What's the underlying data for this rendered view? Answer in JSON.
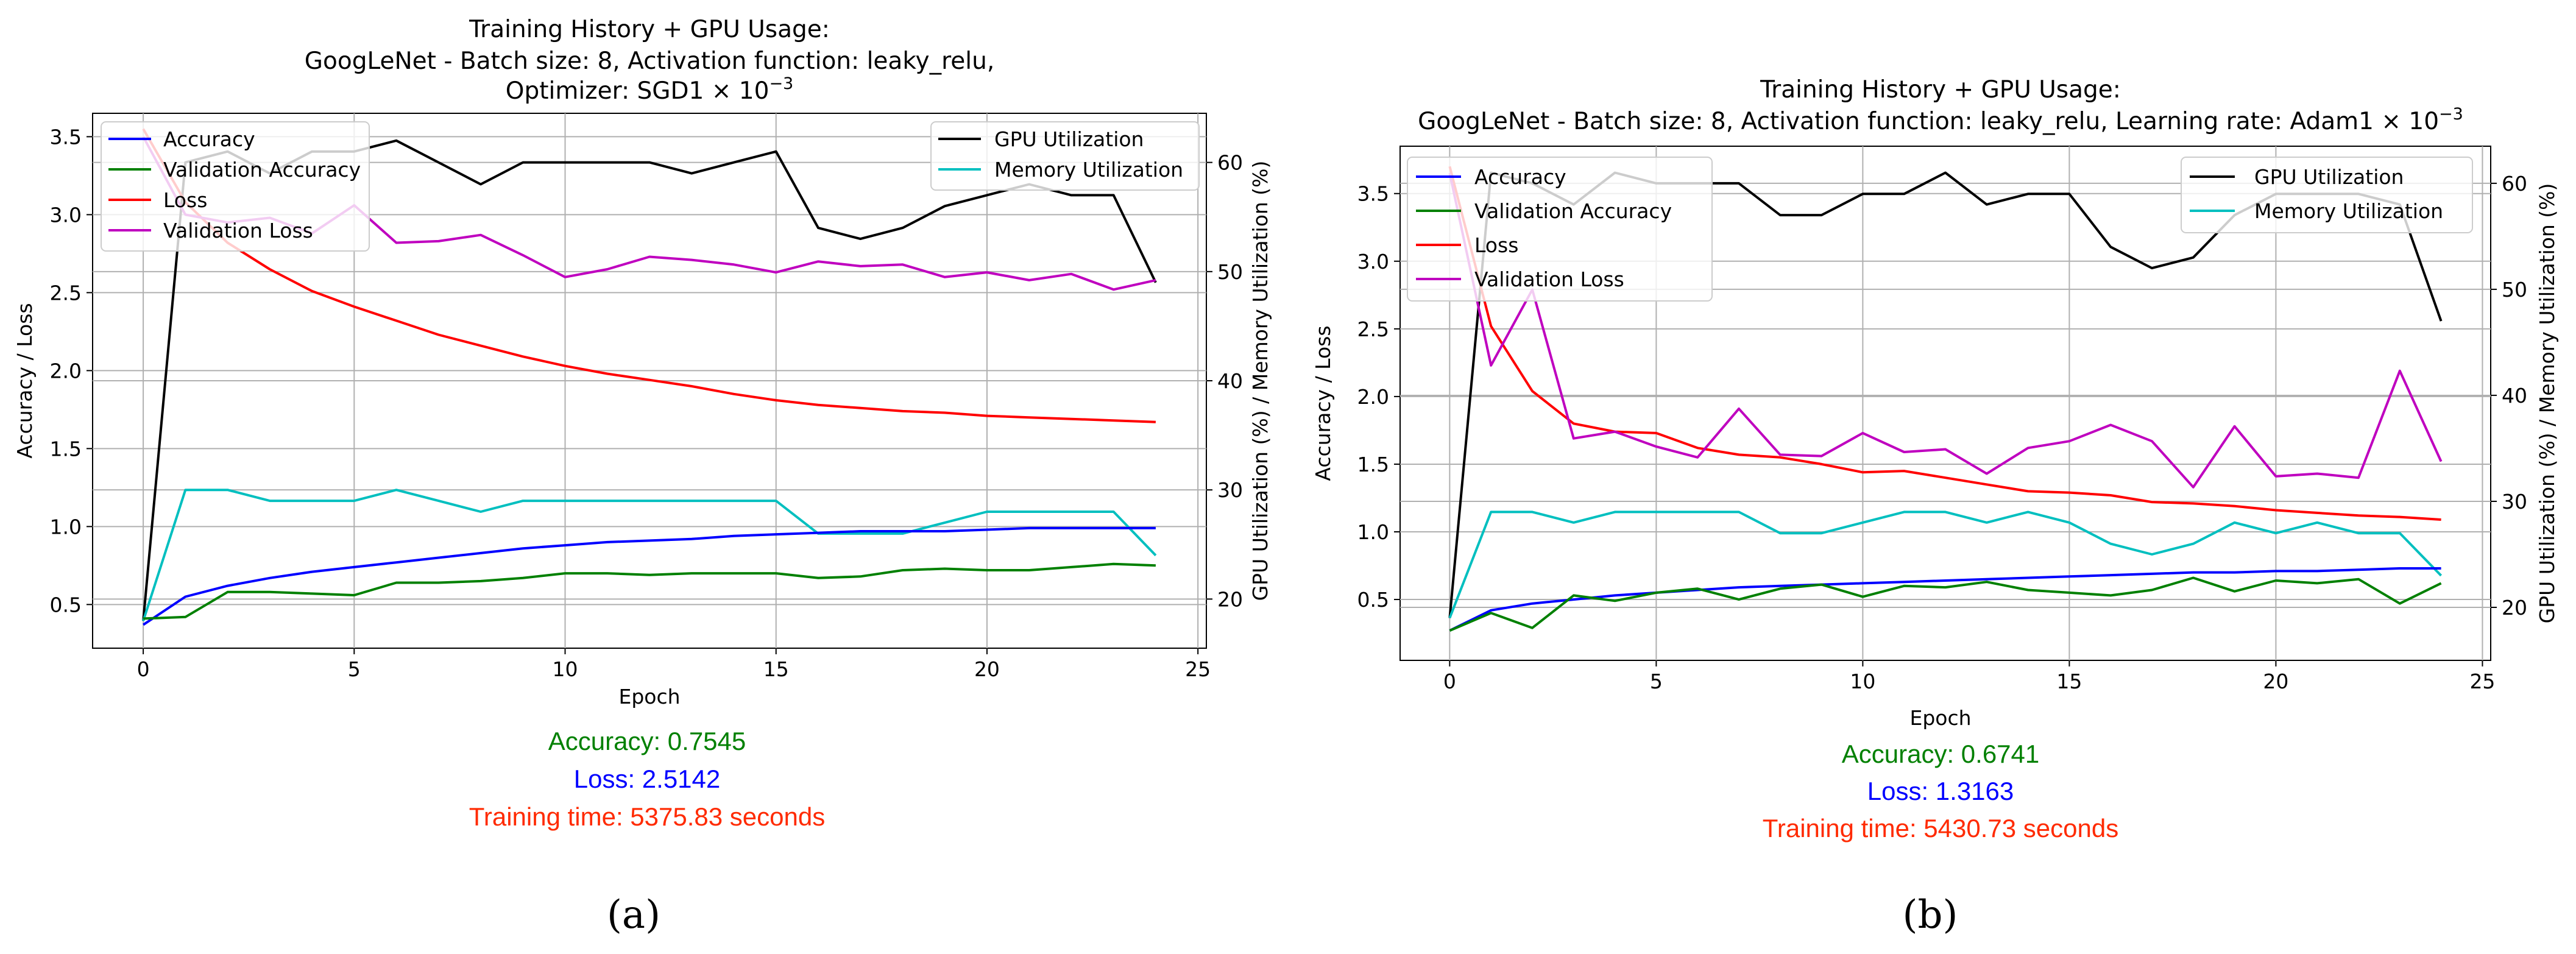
{
  "colors": {
    "accuracy": "#0000ff",
    "validation_accuracy": "#008000",
    "loss": "#ff0000",
    "validation_loss": "#bf00bf",
    "gpu": "#000000",
    "memory": "#00bfbf",
    "stat_accuracy": "#008000",
    "stat_loss": "#0000ff",
    "stat_time": "#ff2a00",
    "grid": "#b0b0b0"
  },
  "chart_data": [
    {
      "type": "line",
      "panel_label": "(a)",
      "title_lines": [
        "Training History + GPU Usage:",
        "GoogLeNet - Batch size: 8, Activation function: leaky_relu,",
        "Optimizer: SGD"
      ],
      "title_math": "1 × 10",
      "title_exp": "−3",
      "xlabel": "Epoch",
      "ylabel": "Accuracy / Loss",
      "ylabel2": "GPU Utilization (%) / Memory Utilization (%)",
      "xlim": [
        -1.2,
        25.2
      ],
      "ylim": [
        0.22,
        3.65
      ],
      "y2lim": [
        15.5,
        64.5
      ],
      "xticks": [
        0,
        5,
        10,
        15,
        20,
        25
      ],
      "yticks": [
        0.5,
        1.0,
        1.5,
        2.0,
        2.5,
        3.0,
        3.5
      ],
      "y2ticks": [
        20,
        30,
        40,
        50,
        60
      ],
      "x": [
        0,
        1,
        2,
        3,
        4,
        5,
        6,
        7,
        8,
        9,
        10,
        11,
        12,
        13,
        14,
        15,
        16,
        17,
        18,
        19,
        20,
        21,
        22,
        23,
        24
      ],
      "series_left": [
        {
          "name": "Accuracy",
          "color_key": "accuracy",
          "values": [
            0.37,
            0.55,
            0.62,
            0.67,
            0.71,
            0.74,
            0.77,
            0.8,
            0.83,
            0.86,
            0.88,
            0.9,
            0.91,
            0.92,
            0.94,
            0.95,
            0.96,
            0.97,
            0.97,
            0.97,
            0.98,
            0.99,
            0.99,
            0.99,
            0.99
          ]
        },
        {
          "name": "Validation Accuracy",
          "color_key": "validation_accuracy",
          "values": [
            0.41,
            0.42,
            0.58,
            0.58,
            0.57,
            0.56,
            0.64,
            0.64,
            0.65,
            0.67,
            0.7,
            0.7,
            0.69,
            0.7,
            0.7,
            0.7,
            0.67,
            0.68,
            0.72,
            0.73,
            0.72,
            0.72,
            0.74,
            0.76,
            0.75
          ]
        },
        {
          "name": "Loss",
          "color_key": "loss",
          "values": [
            3.55,
            3.08,
            2.82,
            2.65,
            2.51,
            2.41,
            2.32,
            2.23,
            2.16,
            2.09,
            2.03,
            1.98,
            1.94,
            1.9,
            1.85,
            1.81,
            1.78,
            1.76,
            1.74,
            1.73,
            1.71,
            1.7,
            1.69,
            1.68,
            1.67
          ]
        },
        {
          "name": "Validation Loss",
          "color_key": "validation_loss",
          "values": [
            3.5,
            3.0,
            2.95,
            2.98,
            2.88,
            3.06,
            2.82,
            2.83,
            2.87,
            2.74,
            2.6,
            2.65,
            2.73,
            2.71,
            2.68,
            2.63,
            2.7,
            2.67,
            2.68,
            2.6,
            2.63,
            2.58,
            2.62,
            2.52,
            2.58
          ]
        }
      ],
      "series_right": [
        {
          "name": "GPU Utilization",
          "color_key": "gpu",
          "values": [
            18,
            60,
            61,
            59,
            61,
            61,
            62,
            60,
            58,
            60,
            60,
            60,
            60,
            59,
            60,
            61,
            54,
            53,
            54,
            56,
            57,
            58,
            57,
            57,
            49
          ]
        },
        {
          "name": "Memory Utilization",
          "color_key": "memory",
          "values": [
            18,
            30,
            30,
            29,
            29,
            29,
            30,
            29,
            28,
            29,
            29,
            29,
            29,
            29,
            29,
            29,
            26,
            26,
            26,
            27,
            28,
            28,
            28,
            28,
            24
          ]
        }
      ],
      "legend_left_position": "upper-left",
      "legend_right_position": "upper-right",
      "stats": {
        "accuracy": "Accuracy: 0.7545",
        "loss": "Loss: 2.5142",
        "time": "Training time: 5375.83 seconds"
      }
    },
    {
      "type": "line",
      "panel_label": "(b)",
      "title_lines": [
        "Training History + GPU Usage:",
        "GoogLeNet - Batch size: 8, Activation function: leaky_relu, Learning rate: Adam"
      ],
      "title_math": "1 × 10",
      "title_exp": "−3",
      "xlabel": "Epoch",
      "ylabel": "Accuracy / Loss",
      "ylabel2": "GPU Utilization (%) / Memory Utilization (%)",
      "xlim": [
        -1.2,
        25.2
      ],
      "ylim": [
        0.05,
        3.85
      ],
      "y2lim": [
        15.0,
        63.5
      ],
      "xticks": [
        0,
        5,
        10,
        15,
        20,
        25
      ],
      "yticks": [
        0.5,
        1.0,
        1.5,
        2.0,
        2.5,
        3.0,
        3.5
      ],
      "y2ticks": [
        20,
        30,
        40,
        50,
        60
      ],
      "x": [
        0,
        1,
        2,
        3,
        4,
        5,
        6,
        7,
        8,
        9,
        10,
        11,
        12,
        13,
        14,
        15,
        16,
        17,
        18,
        19,
        20,
        21,
        22,
        23,
        24
      ],
      "series_left": [
        {
          "name": "Accuracy",
          "color_key": "accuracy",
          "values": [
            0.27,
            0.42,
            0.47,
            0.5,
            0.53,
            0.55,
            0.57,
            0.59,
            0.6,
            0.61,
            0.62,
            0.63,
            0.64,
            0.65,
            0.66,
            0.67,
            0.68,
            0.69,
            0.7,
            0.7,
            0.71,
            0.71,
            0.72,
            0.73,
            0.73
          ]
        },
        {
          "name": "Validation Accuracy",
          "color_key": "validation_accuracy",
          "values": [
            0.27,
            0.4,
            0.29,
            0.53,
            0.49,
            0.55,
            0.58,
            0.5,
            0.58,
            0.61,
            0.52,
            0.6,
            0.59,
            0.63,
            0.57,
            0.55,
            0.53,
            0.57,
            0.66,
            0.56,
            0.64,
            0.62,
            0.65,
            0.47,
            0.62
          ]
        },
        {
          "name": "Loss",
          "color_key": "loss",
          "values": [
            3.7,
            2.52,
            2.04,
            1.8,
            1.74,
            1.73,
            1.62,
            1.57,
            1.55,
            1.5,
            1.44,
            1.45,
            1.4,
            1.35,
            1.3,
            1.29,
            1.27,
            1.22,
            1.21,
            1.19,
            1.16,
            1.14,
            1.12,
            1.11,
            1.09
          ]
        },
        {
          "name": "Validation Loss",
          "color_key": "validation_loss",
          "values": [
            3.65,
            2.23,
            2.79,
            1.69,
            1.74,
            1.63,
            1.55,
            1.91,
            1.57,
            1.56,
            1.73,
            1.59,
            1.61,
            1.43,
            1.62,
            1.67,
            1.79,
            1.67,
            1.33,
            1.78,
            1.41,
            1.43,
            1.4,
            2.19,
            1.52
          ]
        }
      ],
      "series_right": [
        {
          "name": "GPU Utilization",
          "color_key": "gpu",
          "values": [
            19,
            61,
            60,
            58,
            61,
            60,
            60,
            60,
            57,
            57,
            59,
            59,
            61,
            58,
            59,
            59,
            54,
            52,
            53,
            57,
            59,
            59,
            59,
            58,
            47
          ]
        },
        {
          "name": "Memory Utilization",
          "color_key": "memory",
          "values": [
            19,
            29,
            29,
            28,
            29,
            29,
            29,
            29,
            27,
            27,
            28,
            29,
            29,
            28,
            29,
            28,
            26,
            25,
            26,
            28,
            27,
            28,
            27,
            27,
            23
          ]
        }
      ],
      "legend_left_position": "upper-left",
      "legend_right_position": "upper-right",
      "stats": {
        "accuracy": "Accuracy: 0.6741",
        "loss": "Loss: 1.3163",
        "time": "Training time: 5430.73 seconds"
      }
    }
  ]
}
